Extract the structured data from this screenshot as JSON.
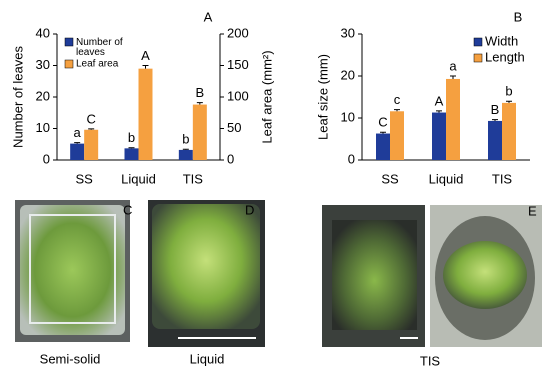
{
  "chart_data": [
    {
      "type": "bar",
      "panel": "A",
      "ylabel": "Number  of leaves",
      "y2label": "Leaf area (mm²)",
      "categories": [
        "SS",
        "Liquid",
        "TIS"
      ],
      "ylim": [
        0,
        40
      ],
      "yticks": [
        0,
        10,
        20,
        30,
        40
      ],
      "y2lim": [
        0,
        200
      ],
      "y2ticks": [
        0,
        50,
        100,
        150,
        200
      ],
      "legend": "upper left",
      "series": [
        {
          "name": "Number of leaves",
          "color": "#1f3c99",
          "values": [
            5.2,
            3.7,
            3.2
          ],
          "errors": [
            0.3,
            0.2,
            0.2
          ],
          "letters": [
            "a",
            "b",
            "b"
          ]
        },
        {
          "name": "Leaf area",
          "color": "#f5a040",
          "axis": "y2",
          "values": [
            48,
            145,
            88
          ],
          "errors": [
            1.5,
            5,
            3
          ],
          "letters": [
            "C",
            "A",
            "B"
          ]
        }
      ]
    },
    {
      "type": "bar",
      "panel": "B",
      "ylabel": "Leaf size (mm)",
      "categories": [
        "SS",
        "Liquid",
        "TIS"
      ],
      "ylim": [
        0,
        30
      ],
      "yticks": [
        0,
        10,
        20,
        30
      ],
      "legend": "upper right",
      "series": [
        {
          "name": "Width",
          "color": "#1f3c99",
          "values": [
            6.3,
            11.3,
            9.3
          ],
          "errors": [
            0.3,
            0.4,
            0.3
          ],
          "letters": [
            "C",
            "A",
            "B"
          ]
        },
        {
          "name": "Length",
          "color": "#f5a040",
          "values": [
            11.6,
            19.3,
            13.6
          ],
          "errors": [
            0.4,
            0.7,
            0.4
          ],
          "letters": [
            "c",
            "a",
            "b"
          ]
        }
      ]
    }
  ],
  "photos": [
    {
      "letter": "C",
      "caption": "Semi-solid"
    },
    {
      "letter": "D",
      "caption": "Liquid"
    },
    {
      "letter": "E",
      "caption": "TIS"
    }
  ]
}
